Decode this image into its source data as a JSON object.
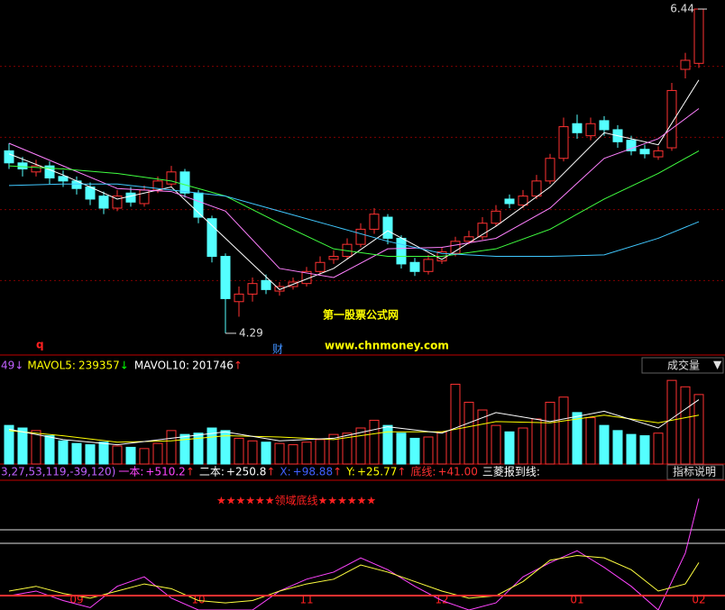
{
  "chart_data": {
    "type": "candlestick",
    "categories": [
      null,
      null,
      null,
      null,
      null,
      "09",
      null,
      null,
      null,
      null,
      null,
      null,
      null,
      null,
      "10",
      null,
      null,
      null,
      null,
      null,
      null,
      null,
      "11",
      null,
      null,
      null,
      null,
      null,
      null,
      null,
      null,
      null,
      "12",
      null,
      null,
      null,
      null,
      null,
      null,
      null,
      null,
      null,
      "01",
      null,
      null,
      null,
      null,
      null,
      null,
      null,
      null,
      "02"
    ],
    "price_panel": {
      "ylim": [
        4.17,
        6.5
      ],
      "up_color": "#ff3232",
      "down_color": "#54ffff",
      "grid_levels": [
        6.06,
        5.59,
        5.11,
        4.64
      ],
      "open": [
        5.5,
        5.42,
        5.36,
        5.4,
        5.33,
        5.3,
        5.26,
        5.2,
        5.12,
        5.22,
        5.15,
        5.24,
        5.28,
        5.36,
        5.22,
        5.05,
        4.8,
        4.5,
        4.55,
        4.64,
        4.57,
        4.6,
        4.62,
        4.7,
        4.78,
        4.8,
        4.88,
        4.98,
        5.06,
        4.92,
        4.76,
        4.7,
        4.77,
        4.82,
        4.9,
        4.93,
        5.02,
        5.18,
        5.14,
        5.2,
        5.3,
        5.45,
        5.68,
        5.6,
        5.7,
        5.64,
        5.57,
        5.51,
        5.46,
        5.52,
        6.04,
        6.08
      ],
      "high": [
        5.55,
        5.46,
        5.44,
        5.43,
        5.37,
        5.33,
        5.29,
        5.23,
        5.24,
        5.26,
        5.27,
        5.33,
        5.4,
        5.38,
        5.24,
        5.07,
        4.82,
        4.6,
        4.66,
        4.68,
        4.63,
        4.66,
        4.73,
        4.8,
        4.84,
        4.92,
        5.02,
        5.12,
        5.08,
        4.94,
        4.79,
        4.81,
        4.86,
        4.93,
        4.97,
        5.06,
        5.14,
        5.21,
        5.24,
        5.34,
        5.48,
        5.72,
        5.74,
        5.72,
        5.73,
        5.67,
        5.6,
        5.54,
        5.53,
        5.95,
        6.15,
        6.44
      ],
      "low": [
        5.38,
        5.33,
        5.33,
        5.28,
        5.26,
        5.21,
        5.14,
        5.08,
        5.1,
        5.13,
        5.13,
        5.22,
        5.26,
        5.19,
        5.02,
        4.76,
        4.29,
        4.4,
        4.5,
        4.55,
        4.54,
        4.58,
        4.6,
        4.68,
        4.75,
        4.78,
        4.86,
        4.95,
        4.88,
        4.72,
        4.67,
        4.68,
        4.75,
        4.8,
        4.88,
        4.91,
        5.0,
        5.12,
        5.12,
        5.18,
        5.28,
        5.43,
        5.58,
        5.57,
        5.6,
        5.52,
        5.47,
        5.45,
        5.44,
        5.5,
        5.98,
        6.05
      ],
      "close": [
        5.42,
        5.38,
        5.4,
        5.32,
        5.3,
        5.25,
        5.18,
        5.12,
        5.2,
        5.16,
        5.24,
        5.3,
        5.36,
        5.22,
        5.06,
        4.8,
        4.52,
        4.55,
        4.62,
        4.58,
        4.6,
        4.63,
        4.7,
        4.76,
        4.8,
        4.88,
        4.98,
        5.08,
        4.92,
        4.75,
        4.7,
        4.78,
        4.83,
        4.9,
        4.93,
        5.02,
        5.1,
        5.15,
        5.2,
        5.3,
        5.45,
        5.66,
        5.62,
        5.68,
        5.64,
        5.56,
        5.5,
        5.48,
        5.5,
        5.9,
        6.1,
        6.44
      ],
      "moving_averages": [
        {
          "color": "#ffffff",
          "x": [
            0,
            4,
            8,
            12,
            16,
            20,
            24,
            28,
            32,
            36,
            40,
            44,
            48,
            51
          ],
          "values": [
            5.48,
            5.34,
            5.18,
            5.26,
            4.92,
            4.58,
            4.72,
            4.97,
            4.78,
            5.0,
            5.26,
            5.62,
            5.54,
            5.97
          ]
        },
        {
          "color": "#ff80ff",
          "x": [
            0,
            4,
            8,
            12,
            16,
            20,
            24,
            28,
            32,
            36,
            40,
            44,
            48,
            51
          ],
          "values": [
            5.55,
            5.4,
            5.25,
            5.23,
            5.1,
            4.72,
            4.66,
            4.85,
            4.86,
            4.92,
            5.12,
            5.45,
            5.58,
            5.78
          ]
        },
        {
          "color": "#40ff40",
          "x": [
            0,
            4,
            8,
            12,
            16,
            20,
            24,
            28,
            32,
            36,
            40,
            44,
            48,
            51
          ],
          "values": [
            5.4,
            5.38,
            5.35,
            5.3,
            5.2,
            5.02,
            4.85,
            4.8,
            4.8,
            4.85,
            4.98,
            5.18,
            5.35,
            5.5
          ]
        },
        {
          "color": "#40c8ff",
          "x": [
            0,
            4,
            8,
            12,
            16,
            20,
            24,
            28,
            32,
            36,
            40,
            44,
            48,
            51
          ],
          "values": [
            5.27,
            5.28,
            5.28,
            5.24,
            5.2,
            5.1,
            5.0,
            4.9,
            4.82,
            4.8,
            4.8,
            4.81,
            4.92,
            5.03
          ]
        }
      ],
      "high_marker": 6.44,
      "low_marker": 4.29,
      "note_q": "q",
      "note_cai": "财"
    },
    "watermark": [
      "第一股票公式网",
      "www.chnmoney.com"
    ],
    "volume_panel": {
      "ylim": [
        0,
        700000
      ],
      "values": [
        300000,
        280000,
        260000,
        220000,
        180000,
        160000,
        150000,
        170000,
        140000,
        130000,
        120000,
        160000,
        260000,
        230000,
        240000,
        280000,
        260000,
        200000,
        180000,
        170000,
        160000,
        150000,
        170000,
        190000,
        230000,
        240000,
        280000,
        340000,
        300000,
        240000,
        200000,
        210000,
        250000,
        620000,
        480000,
        420000,
        300000,
        250000,
        280000,
        350000,
        480000,
        520000,
        400000,
        360000,
        300000,
        260000,
        230000,
        220000,
        240000,
        650000,
        600000,
        540000
      ],
      "header_prefix": "49↓",
      "header_prefix_color": "#c060ff",
      "mavol": [
        {
          "label": "MAVOL5:",
          "value": 239357,
          "arrow": "↓",
          "arrow_color": "#00ff00",
          "color": "#ffff00",
          "x": [
            0,
            4,
            8,
            12,
            16,
            20,
            24,
            28,
            32,
            36,
            40,
            44,
            48,
            51
          ],
          "values": [
            260000,
            220000,
            170000,
            180000,
            220000,
            210000,
            190000,
            250000,
            250000,
            330000,
            320000,
            380000,
            320000,
            380000
          ]
        },
        {
          "label": "MAVOL10:",
          "value": 201746,
          "arrow": "↑",
          "arrow_color": "#ff3030",
          "color": "#ffffff",
          "x": [
            0,
            4,
            8,
            12,
            16,
            20,
            24,
            28,
            32,
            36,
            40,
            44,
            48,
            51
          ],
          "values": [
            270000,
            190000,
            150000,
            200000,
            250000,
            180000,
            200000,
            290000,
            240000,
            400000,
            330000,
            410000,
            280000,
            500000
          ]
        }
      ],
      "selector": "成交量"
    },
    "indicator_panel": {
      "ylim": [
        -20,
        520
      ],
      "params": "3,27,53,119,-39,120)",
      "params_color": "#c060ff",
      "items": [
        {
          "name": "一本:",
          "label": "+510.2",
          "arrow": "↑",
          "color": "#ff44ff"
        },
        {
          "name": "二本:",
          "label": "+250.8",
          "arrow": "↑",
          "color": "#ffffff"
        },
        {
          "name": "X:",
          "label": "+98.88",
          "arrow": "↑",
          "color": "#4060ff"
        },
        {
          "name": "Y:",
          "label": "+25.77",
          "arrow": "↑",
          "color": "#ffff00"
        },
        {
          "name": "底线:",
          "label": "+41.00",
          "value": 41,
          "color": "#ff3030"
        }
      ],
      "tail": "三菱报到线:",
      "help": "指标说明",
      "banner": "★★★★★★领域底线★★★★★★",
      "series": [
        {
          "color": "#ff44ff",
          "x": [
            0,
            2,
            4,
            6,
            8,
            10,
            12,
            14,
            16,
            18,
            20,
            22,
            24,
            26,
            28,
            30,
            32,
            34,
            36,
            38,
            40,
            42,
            44,
            46,
            48,
            50,
            51
          ],
          "values": [
            40,
            60,
            20,
            -10,
            80,
            120,
            30,
            -20,
            -20,
            -20,
            60,
            110,
            140,
            200,
            150,
            80,
            20,
            -20,
            10,
            120,
            180,
            230,
            160,
            80,
            -20,
            220,
            450
          ]
        },
        {
          "color": "#ffff40",
          "x": [
            0,
            2,
            4,
            6,
            8,
            10,
            12,
            14,
            16,
            18,
            20,
            22,
            24,
            26,
            28,
            30,
            32,
            34,
            36,
            38,
            40,
            42,
            44,
            46,
            48,
            50,
            51
          ],
          "values": [
            60,
            80,
            50,
            30,
            60,
            90,
            70,
            20,
            10,
            20,
            60,
            90,
            110,
            170,
            140,
            100,
            60,
            30,
            40,
            100,
            190,
            210,
            200,
            150,
            60,
            90,
            180
          ]
        }
      ]
    }
  }
}
